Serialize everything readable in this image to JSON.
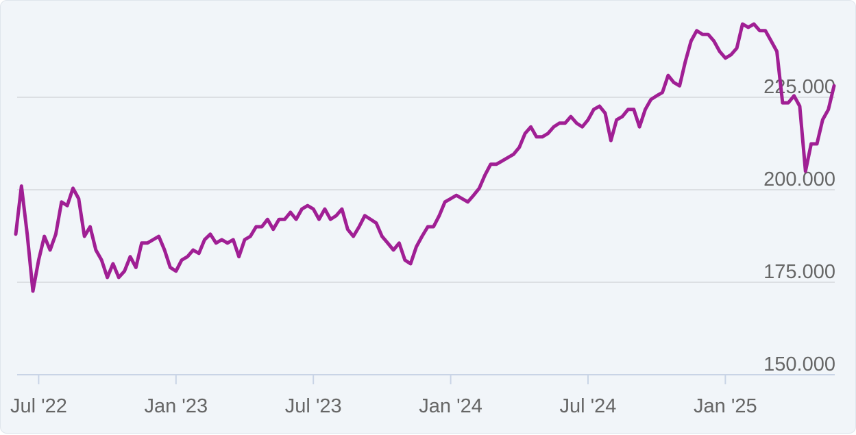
{
  "chart_data": {
    "type": "line",
    "color": "#a01f94",
    "categories": [
      null,
      null,
      null,
      null,
      "Jul '22",
      null,
      null,
      null,
      null,
      null,
      null,
      null,
      null,
      null,
      null,
      null,
      null,
      null,
      null,
      null,
      null,
      null,
      null,
      null,
      null,
      null,
      null,
      null,
      "Jan '23",
      null,
      null,
      null,
      null,
      null,
      null,
      null,
      null,
      null,
      null,
      null,
      null,
      null,
      null,
      null,
      null,
      null,
      null,
      null,
      null,
      null,
      null,
      null,
      "Jul '23",
      null,
      null,
      null,
      null,
      null,
      null,
      null,
      null,
      null,
      null,
      null,
      null,
      null,
      null,
      null,
      null,
      null,
      null,
      null,
      null,
      null,
      null,
      null,
      "Jan '24",
      null,
      null,
      null,
      null,
      null,
      null,
      null,
      null,
      null,
      null,
      null,
      null,
      null,
      null,
      null,
      null,
      null,
      null,
      null,
      null,
      null,
      null,
      null,
      "Jul '24",
      null,
      null,
      null,
      null,
      null,
      null,
      null,
      null,
      null,
      null,
      null,
      null,
      null,
      null,
      null,
      null,
      null,
      null,
      null,
      null,
      null,
      null,
      null,
      "Jan '25",
      null,
      null,
      null,
      null,
      null,
      null,
      null,
      null,
      null,
      null,
      null,
      null,
      null,
      null,
      null,
      null,
      null,
      null,
      null
    ],
    "values": [
      188,
      201,
      188,
      172.6,
      181,
      187.4,
      183.7,
      188,
      196.7,
      195.7,
      200.4,
      197.6,
      187.4,
      190,
      183.7,
      181,
      176.3,
      180,
      176.3,
      178,
      181.9,
      179,
      185.6,
      185.6,
      186.5,
      187.4,
      183.7,
      179,
      178,
      181,
      181.9,
      183.7,
      182.8,
      186.5,
      188,
      185.6,
      186.5,
      185.6,
      186.5,
      181.9,
      186.5,
      187.4,
      190,
      190,
      192,
      189.3,
      192,
      192,
      193.9,
      192,
      194.8,
      195.7,
      194.8,
      192,
      194.8,
      192,
      193,
      194.8,
      189.3,
      187.4,
      190,
      193,
      192,
      191,
      187.4,
      185.6,
      183.7,
      185.6,
      181,
      180,
      184.6,
      187.4,
      190,
      190,
      193,
      196.7,
      197.6,
      198.5,
      197.6,
      196.7,
      198.5,
      200.4,
      204,
      206.9,
      206.9,
      207.8,
      208.7,
      209.6,
      211.5,
      215.2,
      217,
      214.3,
      214.3,
      215.2,
      217,
      218,
      218,
      219.8,
      218,
      217,
      218.9,
      221.7,
      222.6,
      220.7,
      213.3,
      218.9,
      219.8,
      221.7,
      221.7,
      217,
      221.7,
      224.4,
      225.4,
      226.3,
      230.9,
      229,
      228.1,
      234.6,
      240.2,
      243,
      242,
      242,
      240.2,
      237.4,
      235.6,
      236.5,
      238.3,
      244.8,
      243.9,
      244.8,
      243,
      243,
      240.2,
      237.4,
      223.5,
      223.5,
      225.4,
      222.6,
      205,
      212.4,
      212.4,
      218.9,
      221.7,
      228.1
    ],
    "ylim": [
      150,
      250
    ],
    "yticks": [
      {
        "value": 150,
        "label": "150.000"
      },
      {
        "value": 175,
        "label": "175.000"
      },
      {
        "value": 200,
        "label": "200.000"
      },
      {
        "value": 225,
        "label": "225.000"
      }
    ],
    "grid": true
  }
}
